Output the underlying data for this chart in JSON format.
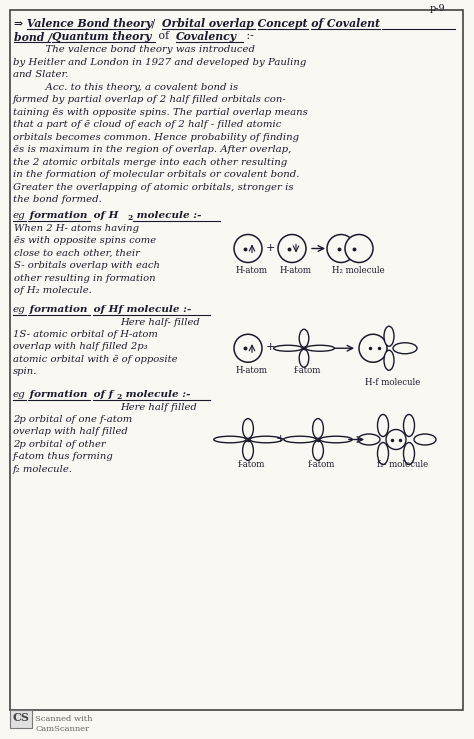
{
  "bg_color": "#faf8f2",
  "border_color": "#333333",
  "ink_color": "#1a1a2e",
  "page_num": "p-9",
  "para1_lines": [
    "          The valence bond theory was introduced",
    "by Heitler and London in 1927 and developed by Pauling",
    "and Slater.",
    "          Acc. to this theory, a covalent bond is",
    "formed by partial overlap of 2 half filled orbitals con-",
    "taining ēs with opposite spins. The partial overlap means",
    "that a part of ē cloud of each of 2 half - filled atomic",
    "orbitals becomes common. Hence probability of finding",
    "ēs is maximum in the region of overlap. After overlap,",
    "the 2 atomic orbitals merge into each other resulting",
    "in the formation of molecular orbitals or covalent bond.",
    "Greater the overlapping of atomic orbitals, stronger is",
    "the bond formed."
  ],
  "eg1_lines": [
    "When 2 H- atoms having",
    "ēs with opposite spins come",
    "close to each other, their",
    "S- orbitals overlap with each",
    "other resulting in formation",
    "of H₂ molecule."
  ],
  "eg2_lines": [
    "1S- atomic orbital of H-atom",
    "overlap with half filled 2p₃",
    "atomic orbital with ē of opposite",
    "spin."
  ],
  "eg3_lines": [
    "2p orbital of one f-atom",
    "overlap with half filled",
    "2p orbital of other",
    "f-atom thus forming",
    "f₂ molecule."
  ],
  "footer": "Scanned with\nCamScanner"
}
